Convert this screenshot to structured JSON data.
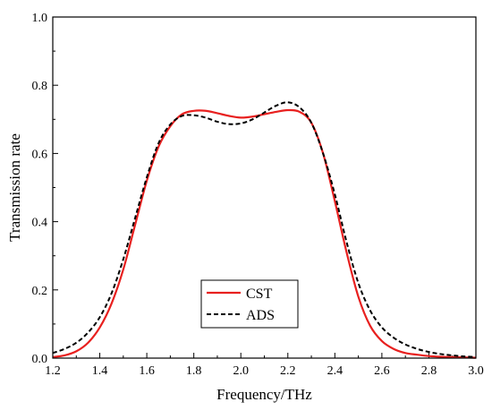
{
  "chart_data": {
    "type": "line",
    "title": "",
    "xlabel": "Frequency/THz",
    "ylabel": "Transmission rate",
    "xlim": [
      1.2,
      3.0
    ],
    "ylim": [
      0.0,
      1.0
    ],
    "xticks": [
      "1.2",
      "1.4",
      "1.6",
      "1.8",
      "2.0",
      "2.2",
      "2.4",
      "2.6",
      "2.8",
      "3.0"
    ],
    "yticks": [
      "0.0",
      "0.2",
      "0.4",
      "0.6",
      "0.8",
      "1.0"
    ],
    "grid": false,
    "legend_position": "bottom-center",
    "series": [
      {
        "name": "CST",
        "color": "#e8201f",
        "style": "solid",
        "x": [
          1.2,
          1.25,
          1.3,
          1.35,
          1.4,
          1.45,
          1.5,
          1.55,
          1.6,
          1.65,
          1.7,
          1.75,
          1.8,
          1.85,
          1.9,
          1.95,
          2.0,
          2.05,
          2.1,
          2.15,
          2.2,
          2.25,
          2.3,
          2.35,
          2.4,
          2.45,
          2.5,
          2.55,
          2.6,
          2.65,
          2.7,
          2.75,
          2.8,
          2.85,
          2.9,
          2.95,
          3.0
        ],
        "y": [
          0.003,
          0.008,
          0.02,
          0.045,
          0.09,
          0.16,
          0.26,
          0.39,
          0.52,
          0.62,
          0.68,
          0.715,
          0.725,
          0.725,
          0.718,
          0.71,
          0.705,
          0.708,
          0.715,
          0.722,
          0.727,
          0.722,
          0.69,
          0.6,
          0.46,
          0.31,
          0.18,
          0.095,
          0.05,
          0.027,
          0.015,
          0.01,
          0.006,
          0.004,
          0.003,
          0.002,
          0.001
        ]
      },
      {
        "name": "ADS",
        "color": "#000000",
        "style": "dashed",
        "x": [
          1.2,
          1.25,
          1.3,
          1.35,
          1.4,
          1.45,
          1.5,
          1.55,
          1.6,
          1.65,
          1.7,
          1.75,
          1.8,
          1.85,
          1.9,
          1.95,
          2.0,
          2.05,
          2.1,
          2.15,
          2.2,
          2.25,
          2.3,
          2.35,
          2.4,
          2.45,
          2.5,
          2.55,
          2.6,
          2.65,
          2.7,
          2.75,
          2.8,
          2.85,
          2.9,
          2.95,
          3.0
        ],
        "y": [
          0.015,
          0.027,
          0.045,
          0.075,
          0.12,
          0.19,
          0.29,
          0.41,
          0.53,
          0.63,
          0.685,
          0.71,
          0.712,
          0.705,
          0.693,
          0.686,
          0.688,
          0.7,
          0.72,
          0.74,
          0.75,
          0.735,
          0.69,
          0.6,
          0.48,
          0.34,
          0.22,
          0.14,
          0.09,
          0.06,
          0.04,
          0.027,
          0.018,
          0.012,
          0.008,
          0.005,
          0.003
        ]
      }
    ]
  }
}
